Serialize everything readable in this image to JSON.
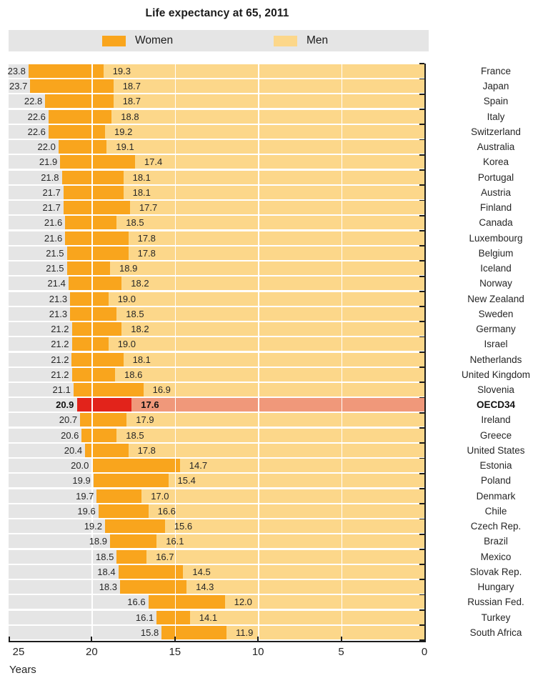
{
  "chart_data": {
    "type": "bar",
    "orientation": "horizontal-reversed",
    "title": "Life expectancy at 65, 2011",
    "xlabel": "Years",
    "axis": {
      "max": 25,
      "min": 0,
      "ticks": [
        "25",
        "20",
        "15",
        "10",
        "5",
        "0"
      ],
      "reversed": true,
      "grid": true
    },
    "legend": {
      "position": "top",
      "entries": [
        {
          "name": "Women"
        },
        {
          "name": "Men"
        }
      ]
    },
    "highlight_row": "OECD34",
    "series_names": [
      "Women",
      "Men"
    ],
    "rows": [
      {
        "country": "France",
        "women": "23.8",
        "men": "19.3"
      },
      {
        "country": "Japan",
        "women": "23.7",
        "men": "18.7"
      },
      {
        "country": "Spain",
        "women": "22.8",
        "men": "18.7"
      },
      {
        "country": "Italy",
        "women": "22.6",
        "men": "18.8"
      },
      {
        "country": "Switzerland",
        "women": "22.6",
        "men": "19.2"
      },
      {
        "country": "Australia",
        "women": "22.0",
        "men": "19.1"
      },
      {
        "country": "Korea",
        "women": "21.9",
        "men": "17.4"
      },
      {
        "country": "Portugal",
        "women": "21.8",
        "men": "18.1"
      },
      {
        "country": "Austria",
        "women": "21.7",
        "men": "18.1"
      },
      {
        "country": "Finland",
        "women": "21.7",
        "men": "17.7"
      },
      {
        "country": "Canada",
        "women": "21.6",
        "men": "18.5"
      },
      {
        "country": "Luxembourg",
        "women": "21.6",
        "men": "17.8"
      },
      {
        "country": "Belgium",
        "women": "21.5",
        "men": "17.8"
      },
      {
        "country": "Iceland",
        "women": "21.5",
        "men": "18.9"
      },
      {
        "country": "Norway",
        "women": "21.4",
        "men": "18.2"
      },
      {
        "country": "New Zealand",
        "women": "21.3",
        "men": "19.0"
      },
      {
        "country": "Sweden",
        "women": "21.3",
        "men": "18.5"
      },
      {
        "country": "Germany",
        "women": "21.2",
        "men": "18.2"
      },
      {
        "country": "Israel",
        "women": "21.2",
        "men": "19.0"
      },
      {
        "country": "Netherlands",
        "women": "21.2",
        "men": "18.1"
      },
      {
        "country": "United Kingdom",
        "women": "21.2",
        "men": "18.6"
      },
      {
        "country": "Slovenia",
        "women": "21.1",
        "men": "16.9"
      },
      {
        "country": "OECD34",
        "women": "20.9",
        "men": "17.6",
        "highlight": true
      },
      {
        "country": "Ireland",
        "women": "20.7",
        "men": "17.9"
      },
      {
        "country": "Greece",
        "women": "20.6",
        "men": "18.5"
      },
      {
        "country": "United States",
        "women": "20.4",
        "men": "17.8"
      },
      {
        "country": "Estonia",
        "women": "20.0",
        "men": "14.7"
      },
      {
        "country": "Poland",
        "women": "19.9",
        "men": "15.4"
      },
      {
        "country": "Denmark",
        "women": "19.7",
        "men": "17.0"
      },
      {
        "country": "Chile",
        "women": "19.6",
        "men": "16.6"
      },
      {
        "country": "Czech Rep.",
        "women": "19.2",
        "men": "15.6"
      },
      {
        "country": "Brazil",
        "women": "18.9",
        "men": "16.1"
      },
      {
        "country": "Mexico",
        "women": "18.5",
        "men": "16.7"
      },
      {
        "country": "Slovak Rep.",
        "women": "18.4",
        "men": "14.5"
      },
      {
        "country": "Hungary",
        "women": "18.3",
        "men": "14.3"
      },
      {
        "country": "Russian Fed.",
        "women": "16.6",
        "men": "12.0"
      },
      {
        "country": "Turkey",
        "women": "16.1",
        "men": "14.1"
      },
      {
        "country": "South Africa",
        "women": "15.8",
        "men": "11.9"
      }
    ],
    "colors": {
      "women": "#F9A51D",
      "men": "#FCD78A",
      "highlight_women": "#E2231B",
      "highlight_men": "#F0987A",
      "row_bg": "#E5E5E5",
      "legend_bg": "#E5E5E5",
      "axis": "#1C1C1C",
      "grid": "#FFFFFF"
    }
  }
}
